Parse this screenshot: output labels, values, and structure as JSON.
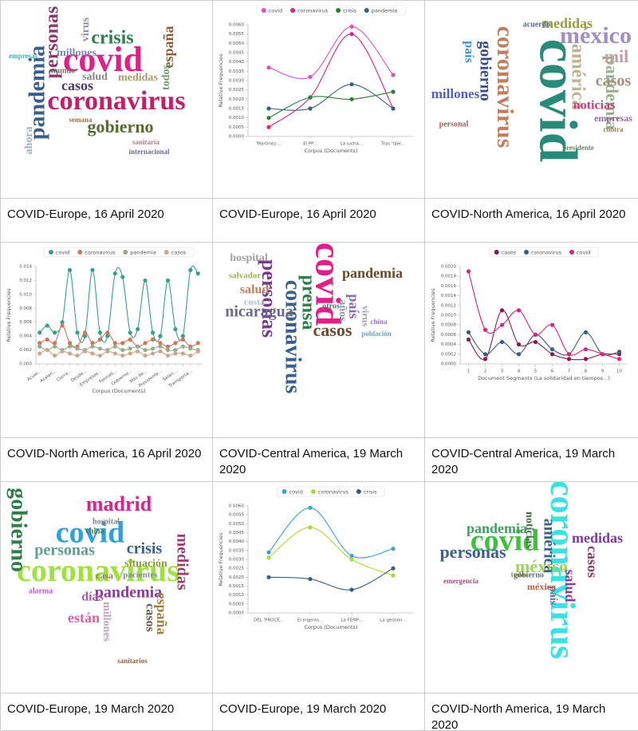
{
  "cells": [
    {
      "caption": "COVID-Europe, 16 April 2020",
      "wordcloud": {
        "words": [
          {
            "text": "covid",
            "color": "#e0208a"
          },
          {
            "text": "coronavirus",
            "color": "#c21f6a"
          },
          {
            "text": "pandemia",
            "color": "#3a5f8a"
          },
          {
            "text": "personas",
            "color": "#8a3a6a"
          },
          {
            "text": "crisis",
            "color": "#2e7d4a"
          },
          {
            "text": "gobierno",
            "color": "#556b2f"
          },
          {
            "text": "casos",
            "color": "#4a3a6a"
          },
          {
            "text": "millones",
            "color": "#7a8ab0"
          },
          {
            "text": "españa",
            "color": "#8a5a3a"
          },
          {
            "text": "salud",
            "color": "#8a8a8a"
          },
          {
            "text": "medidas",
            "color": "#aa9a6a"
          },
          {
            "text": "virus",
            "color": "#9a8aa0"
          },
          {
            "text": "todos",
            "color": "#6a9a6a"
          },
          {
            "text": "ahora",
            "color": "#9ab0c0"
          },
          {
            "text": "mundo",
            "color": "#707070"
          },
          {
            "text": "empresas",
            "color": "#40b0b0"
          },
          {
            "text": "semana",
            "color": "#a07050"
          },
          {
            "text": "sanitaria",
            "color": "#b08090"
          },
          {
            "text": "internacional",
            "color": "#6a6aa0"
          }
        ]
      }
    },
    {
      "caption": "COVID-Europe, 16 April 2020",
      "chart": {
        "type": "line",
        "categories": [
          "'Martínez-...",
          "El PP...",
          "La lucha...",
          "Tras 'tijer..."
        ],
        "series": [
          {
            "name": "covid",
            "color": "#d94fc4",
            "values": [
              0.0037,
              0.0032,
              0.0059,
              0.0033
            ]
          },
          {
            "name": "coronavirus",
            "color": "#d6257f",
            "values": [
              0.0005,
              0.0021,
              0.0055,
              0.0015
            ]
          },
          {
            "name": "crisis",
            "color": "#2e7d32",
            "values": [
              0.001,
              0.0021,
              0.002,
              0.0024
            ]
          },
          {
            "name": "pandemia",
            "color": "#3a5f7f",
            "values": [
              0.0015,
              0.0015,
              0.0028,
              0.0015
            ]
          }
        ],
        "ylim": [
          0,
          0.006
        ],
        "yticks": [
          {
            "value": 0,
            "label": "0.0000"
          },
          0.0005,
          {
            "value": 0.001,
            "label": "0.0010"
          },
          0.0015,
          {
            "value": 0.002,
            "label": "0.0020"
          },
          0.0025,
          {
            "value": 0.003,
            "label": "0.0030"
          },
          0.0035,
          {
            "value": 0.004,
            "label": "0.0040"
          },
          0.0045,
          {
            "value": 0.005,
            "label": "0.0050"
          },
          0.0055,
          {
            "value": 0.006,
            "label": "0.0060"
          }
        ],
        "x_label": "Corpus (Documents)",
        "y_label": "Relative Frequencies"
      }
    },
    {
      "caption": "COVID-North America, 16 April 2020",
      "wordcloud": {
        "words": [
          {
            "text": "covid",
            "color": "#2a8a7a"
          },
          {
            "text": "coronavirus",
            "color": "#c08060"
          },
          {
            "text": "méxico",
            "color": "#a090c0"
          },
          {
            "text": "pandemia",
            "color": "#9ab090"
          },
          {
            "text": "américa",
            "color": "#c0b090"
          },
          {
            "text": "gobierno",
            "color": "#3a4a8a"
          },
          {
            "text": "casos",
            "color": "#a09080"
          },
          {
            "text": "millones",
            "color": "#5060c0"
          },
          {
            "text": "mil",
            "color": "#c0a0a0"
          },
          {
            "text": "medidas",
            "color": "#9a9a40"
          },
          {
            "text": "noticias",
            "color": "#c04080"
          },
          {
            "text": "país",
            "color": "#4090c0"
          },
          {
            "text": "empresas",
            "color": "#8a6a9a"
          },
          {
            "text": "personal",
            "color": "#a06060"
          },
          {
            "text": "presidente",
            "color": "#6a8a6a"
          },
          {
            "text": "acuerdo",
            "color": "#507090"
          },
          {
            "text": "contra",
            "color": "#908050"
          }
        ]
      }
    },
    {
      "caption": "COVID-North America, 16 April 2020",
      "chart": {
        "type": "line",
        "categories": [
          "Acuer...",
          null,
          "Asalari...",
          null,
          "Cierra...",
          null,
          "Desde...",
          null,
          "Empresas...",
          null,
          "Formali...",
          null,
          "Gobierno...",
          null,
          "Más de...",
          null,
          "Presidente...",
          null,
          "Salari...",
          null,
          "Transporta...",
          null
        ],
        "series": [
          {
            "name": "covid",
            "color": "#3a9e8f",
            "values": [
              0.0045,
              0.0055,
              0.0045,
              0.006,
              0.0135,
              0.0045,
              0.004,
              0.0135,
              0.0045,
              0.004,
              0.013,
              0.0125,
              0.0045,
              0.005,
              0.012,
              0.0045,
              0.004,
              0.012,
              0.005,
              0.004,
              0.0135,
              0.013
            ]
          },
          {
            "name": "coronavirus",
            "color": "#c87a5a",
            "values": [
              0.003,
              0.0035,
              0.003,
              0.0055,
              0.003,
              0.0025,
              0.0045,
              0.003,
              0.0035,
              0.0045,
              0.003,
              0.003,
              0.0035,
              0.0025,
              0.003,
              0.0035,
              0.003,
              0.0025,
              0.003,
              0.0035,
              0.0025,
              0.003
            ]
          },
          {
            "name": "pandemia",
            "color": "#9aaa90",
            "values": [
              0.0025,
              0.002,
              0.0025,
              0.002,
              0.0025,
              0.0022,
              0.002,
              0.0025,
              0.0022,
              0.002,
              0.0025,
              0.002,
              0.0022,
              0.0025,
              0.002,
              0.0022,
              0.0025,
              0.002,
              0.002,
              0.0025,
              0.0022,
              0.002
            ]
          },
          {
            "name": "casos",
            "color": "#c8a890",
            "values": [
              0.0015,
              0.002,
              0.0012,
              0.0018,
              0.0015,
              0.0012,
              0.0018,
              0.0015,
              0.0012,
              0.0018,
              0.0015,
              0.0012,
              0.0015,
              0.0018,
              0.0012,
              0.0015,
              0.0018,
              0.0012,
              0.0015,
              0.0015,
              0.0012,
              0.0018
            ]
          }
        ],
        "ylim": [
          0,
          0.014
        ],
        "yticks": [
          {
            "value": 0,
            "label": "0.000"
          },
          0.002,
          0.004,
          0.006,
          0.008,
          {
            "value": 0.01,
            "label": "0.010"
          },
          0.012,
          0.014
        ],
        "x_label": "Corpus (Documents)",
        "y_label": "Relative Frequencies"
      }
    },
    {
      "caption": "COVID-Central America, 19 March 2020",
      "wordcloud": {
        "words": [
          {
            "text": "covid",
            "color": "#e0208a"
          },
          {
            "text": "coronavirus",
            "color": "#3a5f8a"
          },
          {
            "text": "personas",
            "color": "#7a3a8a"
          },
          {
            "text": "prensa",
            "color": "#2e7d4a"
          },
          {
            "text": "pandemia",
            "color": "#6a4a2a"
          },
          {
            "text": "casos",
            "color": "#6a4a2a"
          },
          {
            "text": "nicaragua",
            "color": "#6a6a8a"
          },
          {
            "text": "salud",
            "color": "#c08060"
          },
          {
            "text": "país",
            "color": "#8a6ab0"
          },
          {
            "text": "años",
            "color": "#8a9ab0"
          },
          {
            "text": "hospital",
            "color": "#a0a0a0"
          },
          {
            "text": "costa",
            "color": "#b0c0d0"
          },
          {
            "text": "salvador",
            "color": "#a0b050"
          },
          {
            "text": "virus",
            "color": "#a0a0b0"
          },
          {
            "text": "otros",
            "color": "#5a6a7a"
          },
          {
            "text": "población",
            "color": "#70a0c0"
          },
          {
            "text": "china",
            "color": "#a070c0"
          }
        ]
      }
    },
    {
      "caption": "COVID-Central America, 19 March 2020",
      "chart": {
        "type": "line",
        "x": [
          1,
          2,
          3,
          4,
          5,
          6,
          7,
          8,
          9,
          10
        ],
        "xlim": [
          0.5,
          10.5
        ],
        "xticks": [
          1,
          2,
          3,
          4,
          5,
          6,
          7,
          8,
          9,
          10
        ],
        "series": [
          {
            "name": "casos",
            "color": "#8b1a4a",
            "values": [
              0.0005,
              0.0001,
              0.0011,
              0.0004,
              0.00045,
              0.0002,
              0.0001,
              0.0001,
              0.0002,
              0.0002
            ]
          },
          {
            "name": "coronavirus",
            "color": "#3d5a80",
            "values": [
              0.00065,
              0.0002,
              0.00045,
              0.0002,
              0.0006,
              0.0003,
              0.0002,
              0.00065,
              0.0002,
              0.00025
            ]
          },
          {
            "name": "covid",
            "color": "#d6257f",
            "values": [
              0.0019,
              0.0007,
              0.0008,
              0.0011,
              0.0006,
              0.0008,
              0.0002,
              0.0003,
              0.0002,
              0.0001
            ]
          }
        ],
        "ylim": [
          0,
          0.002
        ],
        "yticks": [
          {
            "value": 0,
            "label": "0.0000"
          },
          0.0002,
          0.0004,
          0.0006,
          0.0008,
          {
            "value": 0.001,
            "label": "0.0010"
          },
          0.0012,
          0.0014,
          0.0016,
          0.0018,
          {
            "value": 0.002,
            "label": "0.0020"
          }
        ],
        "x_label": "Document Segments (La solidaridad en tiempos...)",
        "y_label": "Relative Frequencies"
      }
    },
    {
      "caption": "COVID-Europe, 19 March 2020",
      "wordcloud": {
        "words": [
          {
            "text": "coronavirus",
            "color": "#a0e040"
          },
          {
            "text": "covid",
            "color": "#30a0e0"
          },
          {
            "text": "gobierno",
            "color": "#2e7d4a"
          },
          {
            "text": "madrid",
            "color": "#e0208a"
          },
          {
            "text": "personas",
            "color": "#60a090"
          },
          {
            "text": "crisis",
            "color": "#3a5f8a"
          },
          {
            "text": "pandemia",
            "color": "#8a3aa0"
          },
          {
            "text": "medidas",
            "color": "#a03a6a"
          },
          {
            "text": "españa",
            "color": "#a08040"
          },
          {
            "text": "casos",
            "color": "#6a5a4a"
          },
          {
            "text": "días",
            "color": "#a060a0"
          },
          {
            "text": "están",
            "color": "#e060a0"
          },
          {
            "text": "situación",
            "color": "#8a9a40"
          },
          {
            "text": "millones",
            "color": "#c0a0c0"
          },
          {
            "text": "pacientes",
            "color": "#7a8a9a"
          },
          {
            "text": "casa",
            "color": "#9a7a5a"
          },
          {
            "text": "alarma",
            "color": "#c060c0"
          },
          {
            "text": "hospital",
            "color": "#808080"
          },
          {
            "text": "china",
            "color": "#4a7a4a"
          },
          {
            "text": "sanitarios",
            "color": "#906040"
          }
        ]
      }
    },
    {
      "caption": "COVID-Europe, 19 March 2020",
      "chart": {
        "type": "line",
        "categories": [
          "DEL 'PROCÉ...",
          "El ingenio...",
          "La FEMP...",
          "La gestión..."
        ],
        "series": [
          {
            "name": "covid",
            "color": "#3aa0d8",
            "values": [
              0.0034,
              0.0059,
              0.0032,
              0.0036
            ]
          },
          {
            "name": "coronavirus",
            "color": "#a8d840",
            "values": [
              0.0031,
              0.0048,
              0.003,
              0.0021
            ]
          },
          {
            "name": "crisis",
            "color": "#3d5a80",
            "values": [
              0.002,
              0.0019,
              0.0013,
              0.0025
            ]
          }
        ],
        "ylim": [
          0,
          0.006
        ],
        "yticks": [
          {
            "value": 0,
            "label": "0.0000"
          },
          0.0005,
          {
            "value": 0.001,
            "label": "0.0010"
          },
          0.0015,
          {
            "value": 0.002,
            "label": "0.0020"
          },
          0.0025,
          {
            "value": 0.003,
            "label": "0.0030"
          },
          0.0035,
          {
            "value": 0.004,
            "label": "0.0040"
          },
          0.0045,
          {
            "value": 0.005,
            "label": "0.0050"
          },
          0.0055,
          {
            "value": 0.006,
            "label": "0.0060"
          }
        ],
        "x_label": "Corpus (Documents)",
        "y_label": "Relative Frequencies"
      }
    },
    {
      "caption": "COVID-North America, 19 March 2020",
      "wordcloud": {
        "words": [
          {
            "text": "coronavirus",
            "color": "#40e0e0"
          },
          {
            "text": "covid",
            "color": "#40c040"
          },
          {
            "text": "méxico",
            "color": "#a0d060"
          },
          {
            "text": "personas",
            "color": "#3a5f8a"
          },
          {
            "text": "pandemia",
            "color": "#40a060"
          },
          {
            "text": "casos",
            "color": "#8a3a6a"
          },
          {
            "text": "medidas",
            "color": "#7a3aa0"
          },
          {
            "text": "salud",
            "color": "#8a3aa0"
          },
          {
            "text": "américa",
            "color": "#3a5f8a"
          },
          {
            "text": "noticias",
            "color": "#4a6a4a"
          },
          {
            "text": "país",
            "color": "#6a6aa0"
          },
          {
            "text": "méxico",
            "color": "#c06040"
          },
          {
            "text": "emergencia",
            "color": "#a05080"
          },
          {
            "text": "gobierno",
            "color": "#607080"
          },
          {
            "text": "todos",
            "color": "#808040"
          }
        ]
      }
    }
  ]
}
